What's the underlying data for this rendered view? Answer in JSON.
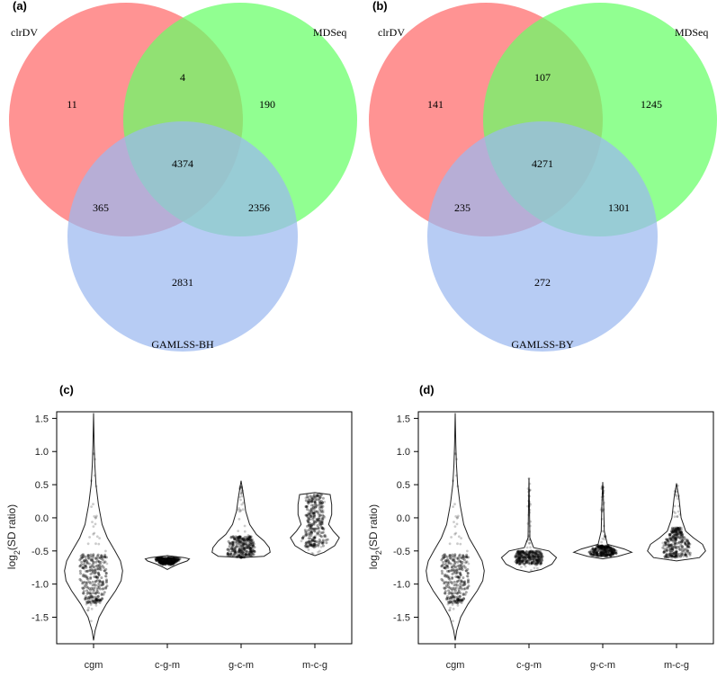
{
  "chart_data": [
    {
      "type": "venn",
      "panel": "(a)",
      "sets": [
        "clrDV",
        "MDSeq",
        "GAMLSS-BH"
      ],
      "colors": [
        "#ff6a6a",
        "#66ff66",
        "#9bb8f0"
      ],
      "regions": {
        "a_only": "11",
        "b_only": "190",
        "c_only": "2831",
        "ab": "4",
        "ac": "365",
        "bc": "2356",
        "abc": "4374"
      }
    },
    {
      "type": "venn",
      "panel": "(b)",
      "sets": [
        "clrDV",
        "MDSeq",
        "GAMLSS-BY"
      ],
      "colors": [
        "#ff6a6a",
        "#66ff66",
        "#9bb8f0"
      ],
      "regions": {
        "a_only": "141",
        "b_only": "1245",
        "c_only": "272",
        "ab": "107",
        "ac": "235",
        "bc": "1301",
        "abc": "4271"
      }
    },
    {
      "type": "violin",
      "panel": "(c)",
      "ylabel_base": "log",
      "ylabel_sub": "2",
      "ylabel_rest": "(SD ratio)",
      "ylim": [
        -1.9,
        1.6
      ],
      "yticks": [
        "1.5",
        "1.0",
        "0.5",
        "0.0",
        "-0.5",
        "-1.0",
        "-1.5"
      ],
      "ytick_values": [
        1.5,
        1.0,
        0.5,
        0.0,
        -0.5,
        -1.0,
        -1.5
      ],
      "categories": [
        "cgm",
        "c-g-m",
        "g-c-m",
        "m-c-g"
      ],
      "violins": [
        {
          "min": -1.85,
          "max": 1.58,
          "profile": [
            [
              -1.85,
              0
            ],
            [
              -1.7,
              0.05
            ],
            [
              -1.5,
              0.18
            ],
            [
              -1.3,
              0.42
            ],
            [
              -1.1,
              0.72
            ],
            [
              -0.95,
              0.9
            ],
            [
              -0.8,
              0.95
            ],
            [
              -0.65,
              0.88
            ],
            [
              -0.5,
              0.7
            ],
            [
              -0.3,
              0.45
            ],
            [
              -0.1,
              0.28
            ],
            [
              0.2,
              0.16
            ],
            [
              0.5,
              0.08
            ],
            [
              0.8,
              0.04
            ],
            [
              1.1,
              0.02
            ],
            [
              1.58,
              0
            ]
          ],
          "dense": [
            -1.3,
            -0.55
          ],
          "sparse": [
            -1.6,
            1.1
          ]
        },
        {
          "min": -0.78,
          "max": -0.57,
          "profile": [
            [
              -0.78,
              0
            ],
            [
              -0.75,
              0.12
            ],
            [
              -0.7,
              0.35
            ],
            [
              -0.65,
              0.65
            ],
            [
              -0.62,
              0.72
            ],
            [
              -0.6,
              0.55
            ],
            [
              -0.57,
              0
            ]
          ],
          "dense": [
            -0.7,
            -0.6
          ],
          "sparse": [
            -0.72,
            -0.58
          ]
        },
        {
          "min": -0.6,
          "max": 0.56,
          "profile": [
            [
              -0.6,
              0
            ],
            [
              -0.58,
              0.75
            ],
            [
              -0.52,
              0.95
            ],
            [
              -0.45,
              0.92
            ],
            [
              -0.35,
              0.75
            ],
            [
              -0.25,
              0.5
            ],
            [
              -0.1,
              0.28
            ],
            [
              0.1,
              0.15
            ],
            [
              0.3,
              0.09
            ],
            [
              0.56,
              0
            ]
          ],
          "dense": [
            -0.6,
            -0.28
          ],
          "sparse": [
            -0.6,
            0.5
          ]
        },
        {
          "min": -0.57,
          "max": 0.38,
          "profile": [
            [
              -0.57,
              0
            ],
            [
              -0.52,
              0.3
            ],
            [
              -0.42,
              0.65
            ],
            [
              -0.3,
              0.8
            ],
            [
              -0.2,
              0.6
            ],
            [
              -0.1,
              0.45
            ],
            [
              0.05,
              0.55
            ],
            [
              0.2,
              0.55
            ],
            [
              0.35,
              0.5
            ],
            [
              0.38,
              0
            ]
          ],
          "dense": [
            -0.45,
            0.35
          ],
          "sparse": [
            -0.55,
            0.38
          ]
        }
      ]
    },
    {
      "type": "violin",
      "panel": "(d)",
      "ylabel_base": "log",
      "ylabel_sub": "2",
      "ylabel_rest": "(SD ratio)",
      "ylim": [
        -1.9,
        1.6
      ],
      "yticks": [
        "1.5",
        "1.0",
        "0.5",
        "0.0",
        "-0.5",
        "-1.0",
        "-1.5"
      ],
      "ytick_values": [
        1.5,
        1.0,
        0.5,
        0.0,
        -0.5,
        -1.0,
        -1.5
      ],
      "categories": [
        "cgm",
        "c-g-m",
        "g-c-m",
        "m-c-g"
      ],
      "violins": [
        {
          "min": -1.85,
          "max": 1.58,
          "profile": [
            [
              -1.85,
              0
            ],
            [
              -1.7,
              0.05
            ],
            [
              -1.5,
              0.18
            ],
            [
              -1.3,
              0.42
            ],
            [
              -1.1,
              0.72
            ],
            [
              -0.95,
              0.9
            ],
            [
              -0.8,
              0.95
            ],
            [
              -0.65,
              0.88
            ],
            [
              -0.5,
              0.7
            ],
            [
              -0.3,
              0.45
            ],
            [
              -0.1,
              0.28
            ],
            [
              0.2,
              0.16
            ],
            [
              0.5,
              0.08
            ],
            [
              0.8,
              0.04
            ],
            [
              1.1,
              0.02
            ],
            [
              1.58,
              0
            ]
          ],
          "dense": [
            -1.3,
            -0.55
          ],
          "sparse": [
            -1.6,
            1.1
          ]
        },
        {
          "min": -0.82,
          "max": 0.6,
          "profile": [
            [
              -0.82,
              0
            ],
            [
              -0.78,
              0.4
            ],
            [
              -0.7,
              0.75
            ],
            [
              -0.6,
              0.9
            ],
            [
              -0.5,
              0.65
            ],
            [
              -0.45,
              0.15
            ],
            [
              -0.3,
              0.03
            ],
            [
              0.0,
              0.02
            ],
            [
              0.6,
              0
            ]
          ],
          "dense": [
            -0.7,
            -0.5
          ],
          "sparse": [
            -0.8,
            0.6
          ]
        },
        {
          "min": -0.62,
          "max": 0.54,
          "profile": [
            [
              -0.62,
              0
            ],
            [
              -0.58,
              0.5
            ],
            [
              -0.52,
              0.95
            ],
            [
              -0.47,
              0.7
            ],
            [
              -0.4,
              0.15
            ],
            [
              -0.2,
              0.05
            ],
            [
              0.2,
              0.03
            ],
            [
              0.54,
              0
            ]
          ],
          "dense": [
            -0.58,
            -0.42
          ],
          "sparse": [
            -0.6,
            0.5
          ]
        },
        {
          "min": -0.65,
          "max": 0.52,
          "profile": [
            [
              -0.65,
              0
            ],
            [
              -0.6,
              0.75
            ],
            [
              -0.5,
              0.95
            ],
            [
              -0.4,
              0.85
            ],
            [
              -0.3,
              0.55
            ],
            [
              -0.2,
              0.3
            ],
            [
              0.0,
              0.15
            ],
            [
              0.3,
              0.08
            ],
            [
              0.52,
              0
            ]
          ],
          "dense": [
            -0.6,
            -0.15
          ],
          "sparse": [
            -0.62,
            0.5
          ]
        }
      ]
    }
  ]
}
